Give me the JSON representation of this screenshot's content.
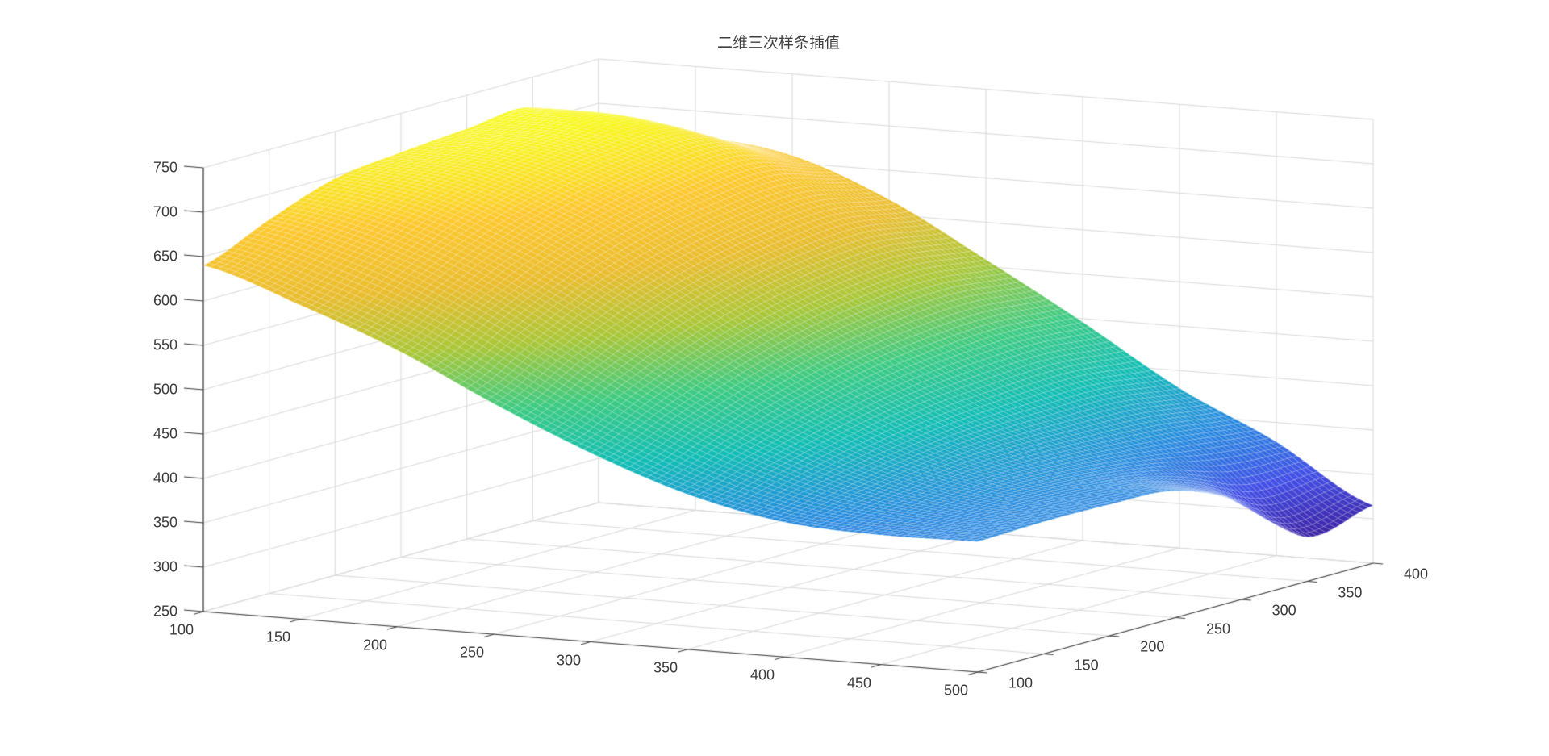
{
  "figure": {
    "background": "#ffffff"
  },
  "chart_data": {
    "type": "surface",
    "title": "二维三次样条插值",
    "xlabel": "",
    "ylabel": "",
    "zlabel": "",
    "x_range": [
      100,
      500
    ],
    "y_range": [
      100,
      400
    ],
    "z_range": [
      250,
      750
    ],
    "x_ticks": [
      100,
      150,
      200,
      250,
      300,
      350,
      400,
      450,
      500
    ],
    "y_ticks": [
      100,
      150,
      200,
      250,
      300,
      350,
      400
    ],
    "z_ticks": [
      250,
      300,
      350,
      400,
      450,
      500,
      550,
      600,
      650,
      700,
      750
    ],
    "grid_on": true,
    "legend": null,
    "colormap": "parula",
    "colormap_stops": [
      {
        "t": 0.0,
        "color": "#3e26a8"
      },
      {
        "t": 0.115,
        "color": "#4450e6"
      },
      {
        "t": 0.24,
        "color": "#2789e0"
      },
      {
        "t": 0.365,
        "color": "#12bdb5"
      },
      {
        "t": 0.49,
        "color": "#3ecb83"
      },
      {
        "t": 0.62,
        "color": "#aac739"
      },
      {
        "t": 0.745,
        "color": "#eabd2f"
      },
      {
        "t": 0.875,
        "color": "#fdc82f"
      },
      {
        "t": 1.0,
        "color": "#f8f91b"
      }
    ],
    "surface_grid_x": [
      100,
      150,
      200,
      250,
      300,
      350,
      400,
      450,
      500
    ],
    "surface_grid_y": [
      100,
      150,
      200,
      250,
      300,
      350,
      400
    ],
    "z_values": [
      [
        640,
        604,
        562,
        510,
        463,
        425,
        402,
        396,
        397
      ],
      [
        671,
        645,
        604,
        551,
        497,
        450,
        417,
        402,
        399
      ],
      [
        697,
        680,
        640,
        587,
        527,
        472,
        430,
        407,
        398
      ],
      [
        706,
        699,
        665,
        611,
        549,
        488,
        438,
        406,
        393
      ],
      [
        712,
        709,
        680,
        625,
        562,
        497,
        440,
        398,
        360
      ],
      [
        716,
        713,
        686,
        631,
        567,
        501,
        440,
        385,
        300
      ],
      [
        665,
        671,
        658,
        617,
        558,
        496,
        430,
        378,
        315
      ]
    ],
    "colors": {
      "axis": "#3a3a3a",
      "grid": "#d9d9d9",
      "tick_label": "#3a3a3a",
      "title": "#404040",
      "mesh_line": "rgba(255,255,255,0.3)"
    }
  }
}
